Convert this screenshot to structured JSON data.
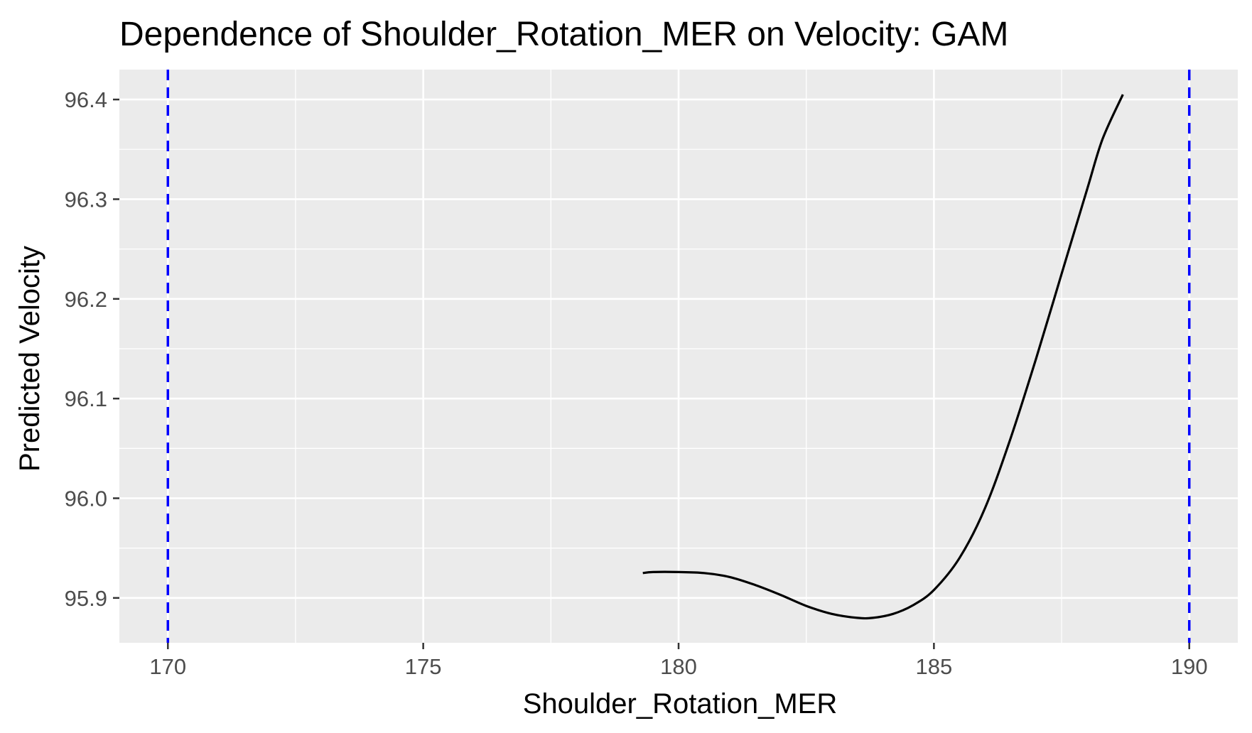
{
  "chart_data": {
    "type": "line",
    "title": "Dependence of Shoulder_Rotation_MER on Velocity: GAM",
    "xlabel": "Shoulder_Rotation_MER",
    "ylabel": "Predicted Velocity",
    "xlim": [
      169.05,
      190.95
    ],
    "ylim": [
      95.855,
      96.43
    ],
    "x_ticks": [
      170,
      175,
      180,
      185,
      190
    ],
    "x_tick_labels": [
      "170",
      "175",
      "180",
      "185",
      "190"
    ],
    "y_ticks": [
      95.9,
      96.0,
      96.1,
      96.2,
      96.3,
      96.4
    ],
    "y_tick_labels": [
      "95.9",
      "96.0",
      "96.1",
      "96.2",
      "96.3",
      "96.4"
    ],
    "grid": true,
    "series": [
      {
        "color": "#000000",
        "x": [
          179.3,
          179.5,
          180.0,
          180.5,
          181.0,
          181.5,
          182.0,
          182.5,
          183.0,
          183.5,
          183.8,
          184.2,
          184.6,
          185.0,
          185.5,
          186.0,
          186.5,
          187.0,
          187.5,
          188.0,
          188.3,
          188.7
        ],
        "y": [
          95.925,
          95.926,
          95.926,
          95.925,
          95.921,
          95.913,
          95.903,
          95.892,
          95.884,
          95.88,
          95.88,
          95.884,
          95.893,
          95.908,
          95.94,
          95.99,
          96.06,
          96.14,
          96.225,
          96.31,
          96.36,
          96.405
        ]
      }
    ],
    "reference_lines": [
      {
        "axis": "x",
        "value": 170,
        "color": "#0000ff",
        "style": "dashed"
      },
      {
        "axis": "x",
        "value": 190,
        "color": "#0000ff",
        "style": "dashed"
      }
    ],
    "colors": {
      "panel_background": "#ebebeb",
      "grid_major": "#ffffff",
      "grid_minor": "#ffffff",
      "tick_text": "#4d4d4d",
      "tick_mark": "#333333"
    }
  }
}
